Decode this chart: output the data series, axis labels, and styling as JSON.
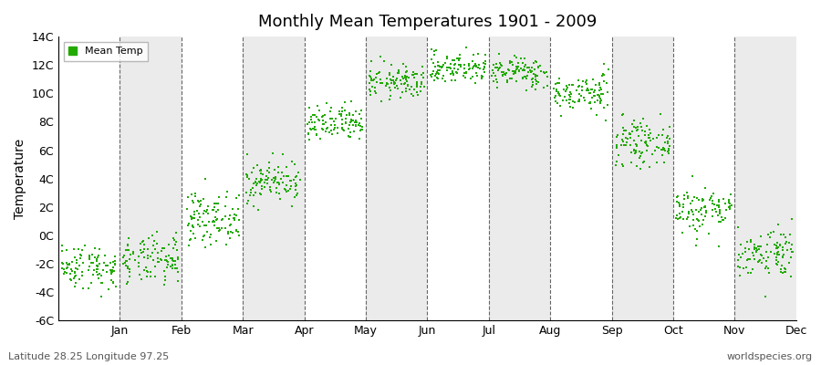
{
  "title": "Monthly Mean Temperatures 1901 - 2009",
  "ylabel": "Temperature",
  "bottom_left": "Latitude 28.25 Longitude 97.25",
  "bottom_right": "worldspecies.org",
  "legend_label": "Mean Temp",
  "dot_color": "#22aa00",
  "background_color": "#ffffff",
  "band_color": "#ebebeb",
  "grid_color": "#666666",
  "ylim": [
    -6,
    14
  ],
  "yticks": [
    -6,
    -4,
    -2,
    0,
    2,
    4,
    6,
    8,
    10,
    12,
    14
  ],
  "ytick_labels": [
    "-6C",
    "-4C",
    "-2C",
    "0C",
    "2C",
    "4C",
    "6C",
    "8C",
    "10C",
    "12C",
    "14C"
  ],
  "months": [
    "Jan",
    "Feb",
    "Mar",
    "Apr",
    "May",
    "Jun",
    "Jul",
    "Aug",
    "Sep",
    "Oct",
    "Nov",
    "Dec"
  ],
  "monthly_means": [
    -2.2,
    -1.8,
    1.2,
    3.8,
    7.8,
    10.8,
    11.8,
    11.5,
    10.0,
    6.5,
    1.8,
    -1.2
  ],
  "monthly_stds": [
    0.8,
    0.85,
    0.9,
    0.75,
    0.65,
    0.6,
    0.55,
    0.55,
    0.65,
    0.75,
    0.85,
    0.9
  ],
  "n_years": 109,
  "seed": 42
}
